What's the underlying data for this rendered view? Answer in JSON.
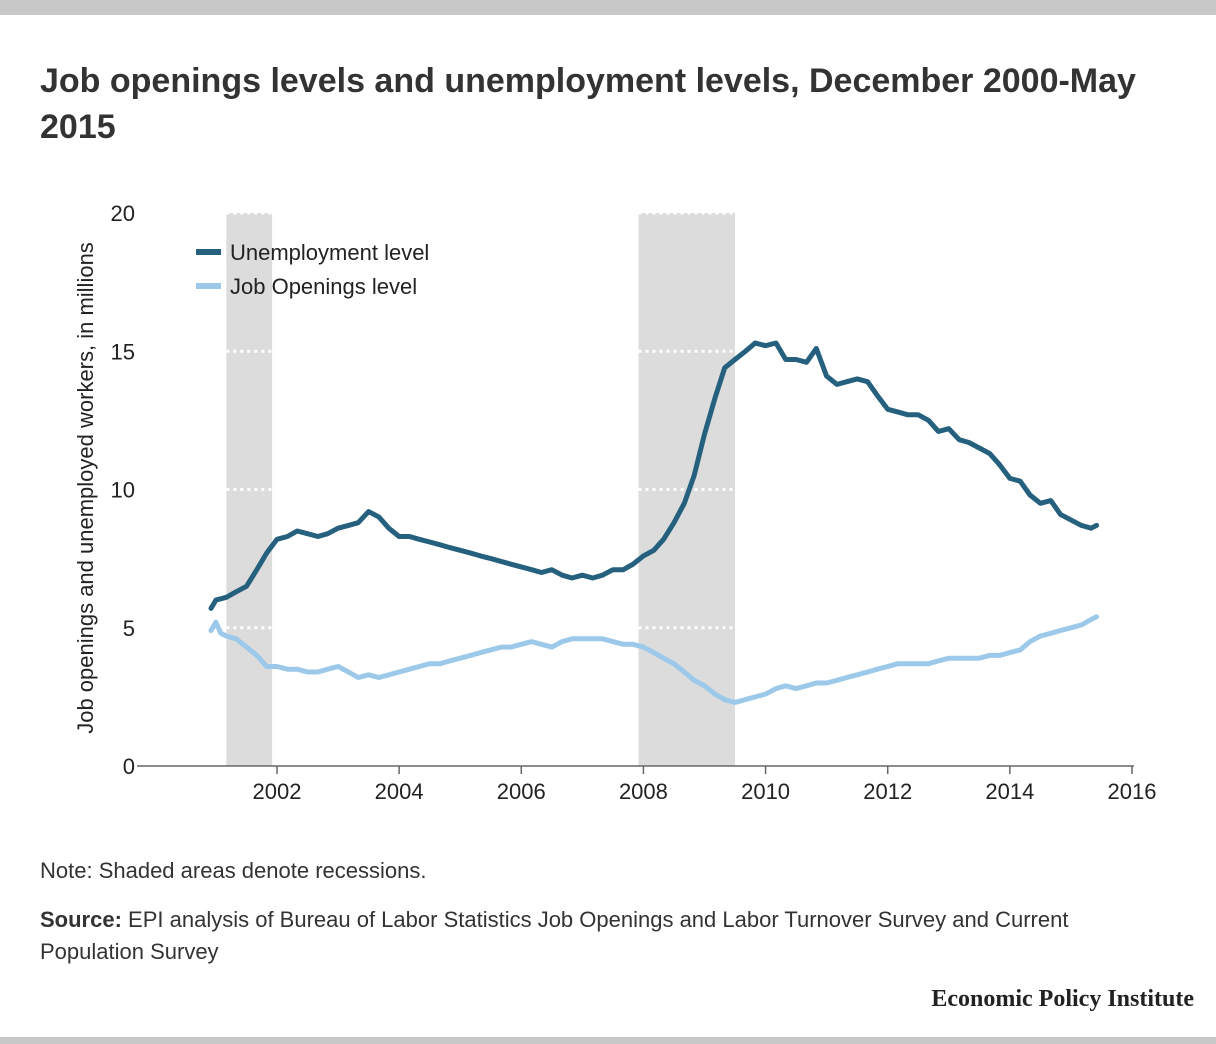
{
  "page": {
    "title": "Job openings levels and unemployment levels, December 2000-May 2015",
    "note": "Note: Shaded areas denote recessions.",
    "source_label": "Source:",
    "source_text": "EPI analysis of Bureau of Labor Statistics Job Openings and Labor Turnover Survey and Current Population Survey",
    "brand": "Economic Policy Institute"
  },
  "chart_data": {
    "type": "line",
    "title": "Job openings levels and unemployment levels, December 2000-May 2015",
    "xlabel": "",
    "ylabel": "Job openings and unemployed workers, in millions",
    "xlim": [
      2000,
      2016
    ],
    "ylim": [
      0,
      20
    ],
    "x_ticks": [
      2002,
      2004,
      2006,
      2008,
      2010,
      2012,
      2014,
      2016
    ],
    "y_ticks": [
      0,
      5,
      10,
      15,
      20
    ],
    "grid": "dotted horizontal lines shown within recession bands",
    "legend_position": "top-left",
    "recessions": [
      [
        2001.17,
        2001.92
      ],
      [
        2007.92,
        2009.5
      ]
    ],
    "series": [
      {
        "name": "Unemployment level",
        "color": "#25607e",
        "points": [
          [
            2000.92,
            5.7
          ],
          [
            2001.0,
            6.0
          ],
          [
            2001.17,
            6.1
          ],
          [
            2001.33,
            6.3
          ],
          [
            2001.5,
            6.5
          ],
          [
            2001.67,
            7.1
          ],
          [
            2001.83,
            7.7
          ],
          [
            2002.0,
            8.2
          ],
          [
            2002.17,
            8.3
          ],
          [
            2002.33,
            8.5
          ],
          [
            2002.5,
            8.4
          ],
          [
            2002.67,
            8.3
          ],
          [
            2002.83,
            8.4
          ],
          [
            2003.0,
            8.6
          ],
          [
            2003.17,
            8.7
          ],
          [
            2003.33,
            8.8
          ],
          [
            2003.5,
            9.2
          ],
          [
            2003.67,
            9.0
          ],
          [
            2003.83,
            8.6
          ],
          [
            2004.0,
            8.3
          ],
          [
            2004.17,
            8.3
          ],
          [
            2004.33,
            8.2
          ],
          [
            2004.5,
            8.1
          ],
          [
            2004.67,
            8.0
          ],
          [
            2004.83,
            7.9
          ],
          [
            2005.0,
            7.8
          ],
          [
            2005.17,
            7.7
          ],
          [
            2005.33,
            7.6
          ],
          [
            2005.5,
            7.5
          ],
          [
            2005.67,
            7.4
          ],
          [
            2005.83,
            7.3
          ],
          [
            2006.0,
            7.2
          ],
          [
            2006.17,
            7.1
          ],
          [
            2006.33,
            7.0
          ],
          [
            2006.5,
            7.1
          ],
          [
            2006.67,
            6.9
          ],
          [
            2006.83,
            6.8
          ],
          [
            2007.0,
            6.9
          ],
          [
            2007.17,
            6.8
          ],
          [
            2007.33,
            6.9
          ],
          [
            2007.5,
            7.1
          ],
          [
            2007.67,
            7.1
          ],
          [
            2007.83,
            7.3
          ],
          [
            2008.0,
            7.6
          ],
          [
            2008.17,
            7.8
          ],
          [
            2008.33,
            8.2
          ],
          [
            2008.5,
            8.8
          ],
          [
            2008.67,
            9.5
          ],
          [
            2008.83,
            10.5
          ],
          [
            2009.0,
            12.0
          ],
          [
            2009.17,
            13.3
          ],
          [
            2009.33,
            14.4
          ],
          [
            2009.5,
            14.7
          ],
          [
            2009.67,
            15.0
          ],
          [
            2009.83,
            15.3
          ],
          [
            2010.0,
            15.2
          ],
          [
            2010.17,
            15.3
          ],
          [
            2010.33,
            14.7
          ],
          [
            2010.5,
            14.7
          ],
          [
            2010.67,
            14.6
          ],
          [
            2010.83,
            15.1
          ],
          [
            2011.0,
            14.1
          ],
          [
            2011.17,
            13.8
          ],
          [
            2011.33,
            13.9
          ],
          [
            2011.5,
            14.0
          ],
          [
            2011.67,
            13.9
          ],
          [
            2011.83,
            13.4
          ],
          [
            2012.0,
            12.9
          ],
          [
            2012.17,
            12.8
          ],
          [
            2012.33,
            12.7
          ],
          [
            2012.5,
            12.7
          ],
          [
            2012.67,
            12.5
          ],
          [
            2012.83,
            12.1
          ],
          [
            2013.0,
            12.2
          ],
          [
            2013.17,
            11.8
          ],
          [
            2013.33,
            11.7
          ],
          [
            2013.5,
            11.5
          ],
          [
            2013.67,
            11.3
          ],
          [
            2013.83,
            10.9
          ],
          [
            2014.0,
            10.4
          ],
          [
            2014.17,
            10.3
          ],
          [
            2014.33,
            9.8
          ],
          [
            2014.5,
            9.5
          ],
          [
            2014.67,
            9.6
          ],
          [
            2014.83,
            9.1
          ],
          [
            2015.0,
            8.9
          ],
          [
            2015.17,
            8.7
          ],
          [
            2015.33,
            8.6
          ],
          [
            2015.42,
            8.7
          ]
        ]
      },
      {
        "name": "Job Openings level",
        "color": "#9cc9e9",
        "points": [
          [
            2000.92,
            4.9
          ],
          [
            2001.0,
            5.2
          ],
          [
            2001.08,
            4.8
          ],
          [
            2001.17,
            4.7
          ],
          [
            2001.33,
            4.6
          ],
          [
            2001.5,
            4.3
          ],
          [
            2001.67,
            4.0
          ],
          [
            2001.83,
            3.6
          ],
          [
            2002.0,
            3.6
          ],
          [
            2002.17,
            3.5
          ],
          [
            2002.33,
            3.5
          ],
          [
            2002.5,
            3.4
          ],
          [
            2002.67,
            3.4
          ],
          [
            2002.83,
            3.5
          ],
          [
            2003.0,
            3.6
          ],
          [
            2003.17,
            3.4
          ],
          [
            2003.33,
            3.2
          ],
          [
            2003.5,
            3.3
          ],
          [
            2003.67,
            3.2
          ],
          [
            2003.83,
            3.3
          ],
          [
            2004.0,
            3.4
          ],
          [
            2004.17,
            3.5
          ],
          [
            2004.33,
            3.6
          ],
          [
            2004.5,
            3.7
          ],
          [
            2004.67,
            3.7
          ],
          [
            2004.83,
            3.8
          ],
          [
            2005.0,
            3.9
          ],
          [
            2005.17,
            4.0
          ],
          [
            2005.33,
            4.1
          ],
          [
            2005.5,
            4.2
          ],
          [
            2005.67,
            4.3
          ],
          [
            2005.83,
            4.3
          ],
          [
            2006.0,
            4.4
          ],
          [
            2006.17,
            4.5
          ],
          [
            2006.33,
            4.4
          ],
          [
            2006.5,
            4.3
          ],
          [
            2006.67,
            4.5
          ],
          [
            2006.83,
            4.6
          ],
          [
            2007.0,
            4.6
          ],
          [
            2007.17,
            4.6
          ],
          [
            2007.33,
            4.6
          ],
          [
            2007.5,
            4.5
          ],
          [
            2007.67,
            4.4
          ],
          [
            2007.83,
            4.4
          ],
          [
            2008.0,
            4.3
          ],
          [
            2008.17,
            4.1
          ],
          [
            2008.33,
            3.9
          ],
          [
            2008.5,
            3.7
          ],
          [
            2008.67,
            3.4
          ],
          [
            2008.83,
            3.1
          ],
          [
            2009.0,
            2.9
          ],
          [
            2009.17,
            2.6
          ],
          [
            2009.33,
            2.4
          ],
          [
            2009.5,
            2.3
          ],
          [
            2009.67,
            2.4
          ],
          [
            2009.83,
            2.5
          ],
          [
            2010.0,
            2.6
          ],
          [
            2010.17,
            2.8
          ],
          [
            2010.33,
            2.9
          ],
          [
            2010.5,
            2.8
          ],
          [
            2010.67,
            2.9
          ],
          [
            2010.83,
            3.0
          ],
          [
            2011.0,
            3.0
          ],
          [
            2011.17,
            3.1
          ],
          [
            2011.33,
            3.2
          ],
          [
            2011.5,
            3.3
          ],
          [
            2011.67,
            3.4
          ],
          [
            2011.83,
            3.5
          ],
          [
            2012.0,
            3.6
          ],
          [
            2012.17,
            3.7
          ],
          [
            2012.33,
            3.7
          ],
          [
            2012.5,
            3.7
          ],
          [
            2012.67,
            3.7
          ],
          [
            2012.83,
            3.8
          ],
          [
            2013.0,
            3.9
          ],
          [
            2013.17,
            3.9
          ],
          [
            2013.33,
            3.9
          ],
          [
            2013.5,
            3.9
          ],
          [
            2013.67,
            4.0
          ],
          [
            2013.83,
            4.0
          ],
          [
            2014.0,
            4.1
          ],
          [
            2014.17,
            4.2
          ],
          [
            2014.33,
            4.5
          ],
          [
            2014.5,
            4.7
          ],
          [
            2014.67,
            4.8
          ],
          [
            2014.83,
            4.9
          ],
          [
            2015.0,
            5.0
          ],
          [
            2015.17,
            5.1
          ],
          [
            2015.33,
            5.3
          ],
          [
            2015.42,
            5.4
          ]
        ]
      }
    ]
  }
}
